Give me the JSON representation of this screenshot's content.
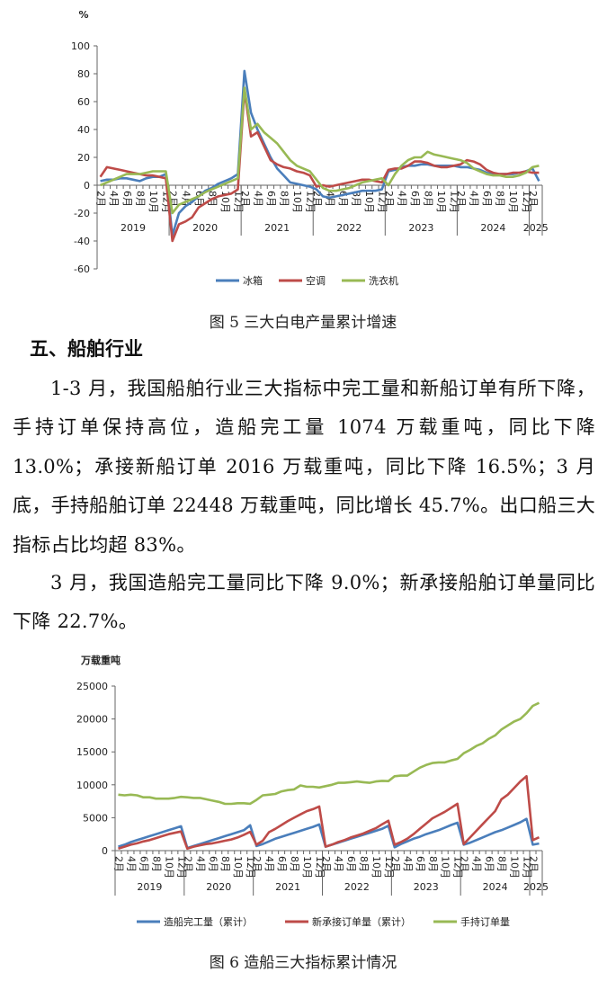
{
  "chart_data": [
    {
      "type": "line",
      "ylabel": "%",
      "caption": "图 5 三大白电产量累计增速",
      "categories": [
        "2月",
        null,
        "4月",
        null,
        "6月",
        null,
        "8月",
        null,
        "10月",
        null,
        "12月",
        "2月",
        null,
        "4月",
        null,
        "6月",
        null,
        "8月",
        null,
        "10月",
        null,
        "12月",
        "2月",
        null,
        "4月",
        null,
        "6月",
        null,
        "8月",
        null,
        "10月",
        null,
        "12月",
        "2月",
        null,
        "4月",
        null,
        "6月",
        null,
        "8月",
        null,
        "10月",
        null,
        "12月",
        "2月",
        null,
        "4月",
        null,
        "6月",
        null,
        "8月",
        null,
        "10月",
        null,
        "12月",
        "2月",
        null,
        "4月",
        null,
        "6月",
        null,
        "8月",
        null,
        "10月",
        null,
        "12月",
        "2月",
        null
      ],
      "x_groups": [
        "2019",
        "2020",
        "2021",
        "2022",
        "2023",
        "2024",
        "2025"
      ],
      "ylim": [
        -60,
        100
      ],
      "yticks": [
        -60,
        -40,
        -20,
        0,
        20,
        40,
        60,
        80,
        100
      ],
      "series": [
        {
          "name": "冰箱",
          "color": "#4a7ebb",
          "values": [
            3,
            4,
            4,
            5,
            5,
            4,
            3,
            5,
            6,
            6,
            8,
            -36,
            -20,
            -15,
            -12,
            -8,
            -4,
            -2,
            1,
            3,
            5,
            8,
            82,
            52,
            40,
            30,
            20,
            12,
            7,
            2,
            1,
            0,
            -1,
            -3,
            -8,
            -9,
            -8,
            -7,
            -6,
            -5,
            -4,
            -4,
            -4,
            -3,
            10,
            11,
            13,
            14,
            14,
            15,
            15,
            14,
            14,
            14,
            14,
            13,
            13,
            12,
            11,
            9,
            8,
            8,
            8,
            8,
            9,
            10,
            12,
            3
          ]
        },
        {
          "name": "空调",
          "color": "#be4b48",
          "values": [
            6,
            13,
            12,
            11,
            10,
            9,
            8,
            7,
            7,
            6,
            5,
            -40,
            -28,
            -26,
            -23,
            -16,
            -13,
            -10,
            -8,
            -7,
            -6,
            -3,
            68,
            35,
            38,
            28,
            18,
            15,
            13,
            12,
            10,
            9,
            7,
            -1,
            0,
            -1,
            0,
            1,
            2,
            3,
            4,
            4,
            3,
            2,
            11,
            12,
            12,
            14,
            17,
            17,
            16,
            14,
            13,
            13,
            14,
            15,
            18,
            17,
            15,
            11,
            9,
            8,
            8,
            9,
            9,
            10,
            9,
            9
          ]
        },
        {
          "name": "洗衣机",
          "color": "#98b954",
          "values": [
            0,
            2,
            4,
            6,
            8,
            8,
            8,
            9,
            10,
            10,
            10,
            -20,
            -14,
            -12,
            -10,
            -8,
            -5,
            -3,
            -1,
            1,
            3,
            5,
            70,
            40,
            44,
            38,
            34,
            30,
            24,
            18,
            14,
            12,
            10,
            4,
            -2,
            -4,
            -4,
            -3,
            -2,
            0,
            2,
            3,
            4,
            5,
            0,
            8,
            14,
            18,
            20,
            20,
            24,
            22,
            21,
            20,
            19,
            18,
            16,
            12,
            10,
            8,
            7,
            7,
            6,
            6,
            7,
            9,
            13,
            14
          ]
        }
      ]
    },
    {
      "type": "line",
      "ylabel": "万载重吨",
      "caption": "图 6 造船三大指标累计情况",
      "categories": [
        "2月",
        null,
        "4月",
        null,
        "6月",
        null,
        "8月",
        null,
        "10月",
        null,
        "12月",
        "2月",
        null,
        "4月",
        null,
        "6月",
        null,
        "8月",
        null,
        "10月",
        null,
        "12月",
        "2月",
        null,
        "4月",
        null,
        "6月",
        null,
        "8月",
        null,
        "10月",
        null,
        "12月",
        "2月",
        null,
        "4月",
        null,
        "6月",
        null,
        "8月",
        null,
        "10月",
        null,
        "12月",
        "2月",
        null,
        "4月",
        null,
        "6月",
        null,
        "8月",
        null,
        "10月",
        null,
        "12月",
        "2月",
        null,
        "4月",
        null,
        "6月",
        null,
        "8月",
        null,
        "10月",
        null,
        "12月",
        "2月",
        null
      ],
      "x_groups": [
        "2019",
        "2020",
        "2021",
        "2022",
        "2023",
        "2024",
        "2025"
      ],
      "ylim": [
        0,
        25000
      ],
      "yticks": [
        0,
        5000,
        10000,
        15000,
        20000,
        25000
      ],
      "series": [
        {
          "name": "造船完工量（累计）",
          "color": "#4a7ebb",
          "values": [
            600,
            900,
            1300,
            1600,
            1900,
            2200,
            2500,
            2800,
            3100,
            3400,
            3700,
            400,
            700,
            1000,
            1300,
            1600,
            1900,
            2200,
            2500,
            2800,
            3100,
            3850,
            700,
            1000,
            1400,
            1800,
            2100,
            2400,
            2700,
            3000,
            3300,
            3600,
            3970,
            600,
            900,
            1200,
            1500,
            1800,
            2100,
            2400,
            2700,
            3000,
            3300,
            3786,
            500,
            1000,
            1400,
            1800,
            2100,
            2500,
            2800,
            3100,
            3500,
            3900,
            4232,
            900,
            1200,
            1600,
            2000,
            2400,
            2800,
            3100,
            3500,
            3900,
            4300,
            4818,
            900,
            1074
          ]
        },
        {
          "name": "新承接订单量（累计）",
          "color": "#be4b48",
          "values": [
            300,
            600,
            900,
            1100,
            1400,
            1600,
            1900,
            2200,
            2500,
            2700,
            2907,
            300,
            600,
            800,
            1000,
            1100,
            1300,
            1500,
            1700,
            2000,
            2400,
            2853,
            900,
            1500,
            2800,
            3300,
            3900,
            4500,
            5000,
            5500,
            6000,
            6300,
            6707,
            600,
            900,
            1300,
            1600,
            2000,
            2300,
            2600,
            3000,
            3400,
            4000,
            4552,
            900,
            1300,
            1800,
            2500,
            3300,
            4100,
            4900,
            5400,
            5900,
            6500,
            7120,
            1000,
            2000,
            3000,
            4000,
            5000,
            6000,
            7800,
            8500,
            9500,
            10500,
            11305,
            1600,
            2016
          ]
        },
        {
          "name": "手持订单量",
          "color": "#98b954",
          "values": [
            8500,
            8400,
            8500,
            8400,
            8100,
            8100,
            7900,
            7900,
            7900,
            8000,
            8166,
            8100,
            8000,
            8000,
            7800,
            7600,
            7400,
            7100,
            7100,
            7200,
            7200,
            7111,
            7700,
            8400,
            8500,
            8600,
            9000,
            9200,
            9300,
            9900,
            9700,
            9700,
            9584,
            9800,
            10000,
            10300,
            10300,
            10400,
            10500,
            10400,
            10300,
            10500,
            10600,
            10557,
            11300,
            11400,
            11400,
            12000,
            12600,
            13000,
            13300,
            13400,
            13400,
            13700,
            13939,
            14800,
            15300,
            15900,
            16300,
            17000,
            17500,
            18400,
            19000,
            19600,
            20000,
            20872,
            22000,
            22448
          ]
        }
      ]
    }
  ],
  "section": {
    "heading": "五、船舶行业",
    "paragraphs": [
      "1-3 月，我国船舶行业三大指标中完工量和新船订单有所下降，手持订单保持高位，造船完工量 1074 万载重吨，同比下降 13.0%；承接新船订单 2016 万载重吨，同比下降 16.5%；3 月底，手持船舶订单 22448 万载重吨，同比增长 45.7%。出口船三大指标占比均超 83%。",
      "3 月，我国造船完工量同比下降 9.0%；新承接船舶订单量同比下降 22.7%。"
    ]
  }
}
